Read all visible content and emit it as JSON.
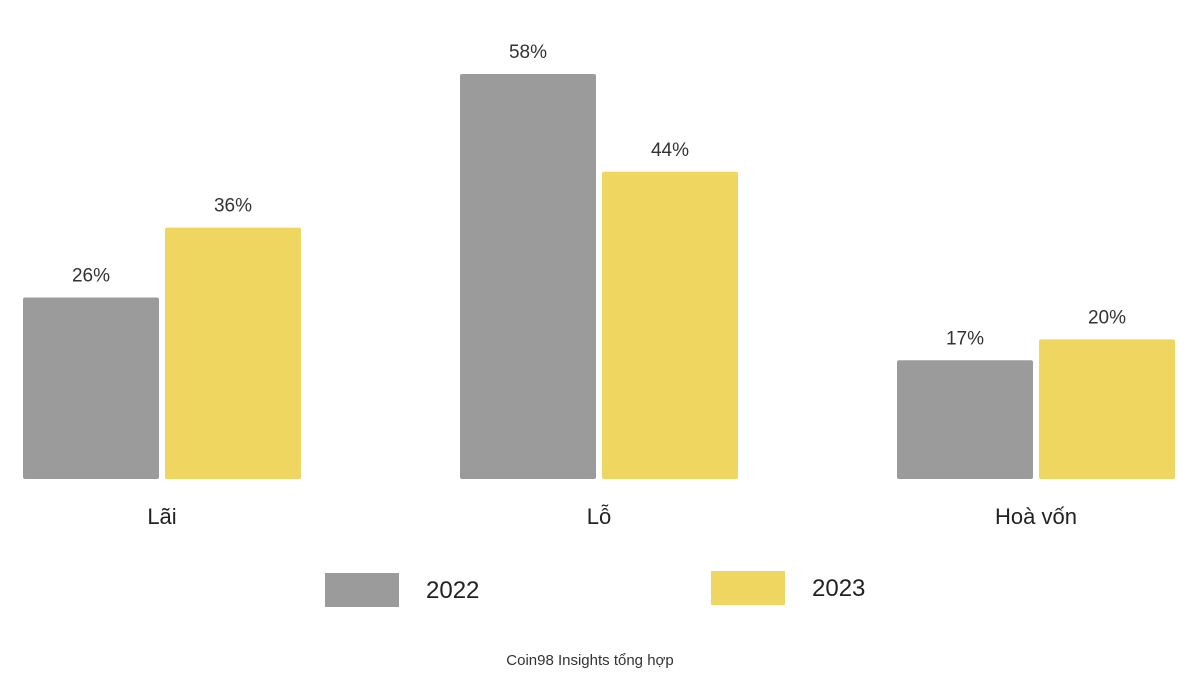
{
  "chart_data": {
    "type": "bar",
    "title": "",
    "xlabel": "",
    "ylabel": "",
    "ylim": [
      0,
      60
    ],
    "grid": false,
    "categories": [
      "Lãi",
      "Lỗ",
      "Hoà vốn"
    ],
    "series": [
      {
        "name": "2022",
        "values": [
          26,
          58,
          17
        ],
        "labels": [
          "26%",
          "58%",
          "17%"
        ],
        "color": "#9b9b9b"
      },
      {
        "name": "2023",
        "values": [
          36,
          44,
          20
        ],
        "labels": [
          "36%",
          "44%",
          "20%"
        ],
        "color": "#efd660"
      }
    ],
    "legend": "bottom-center",
    "source": "Coin98 Insights tổng hợp"
  }
}
